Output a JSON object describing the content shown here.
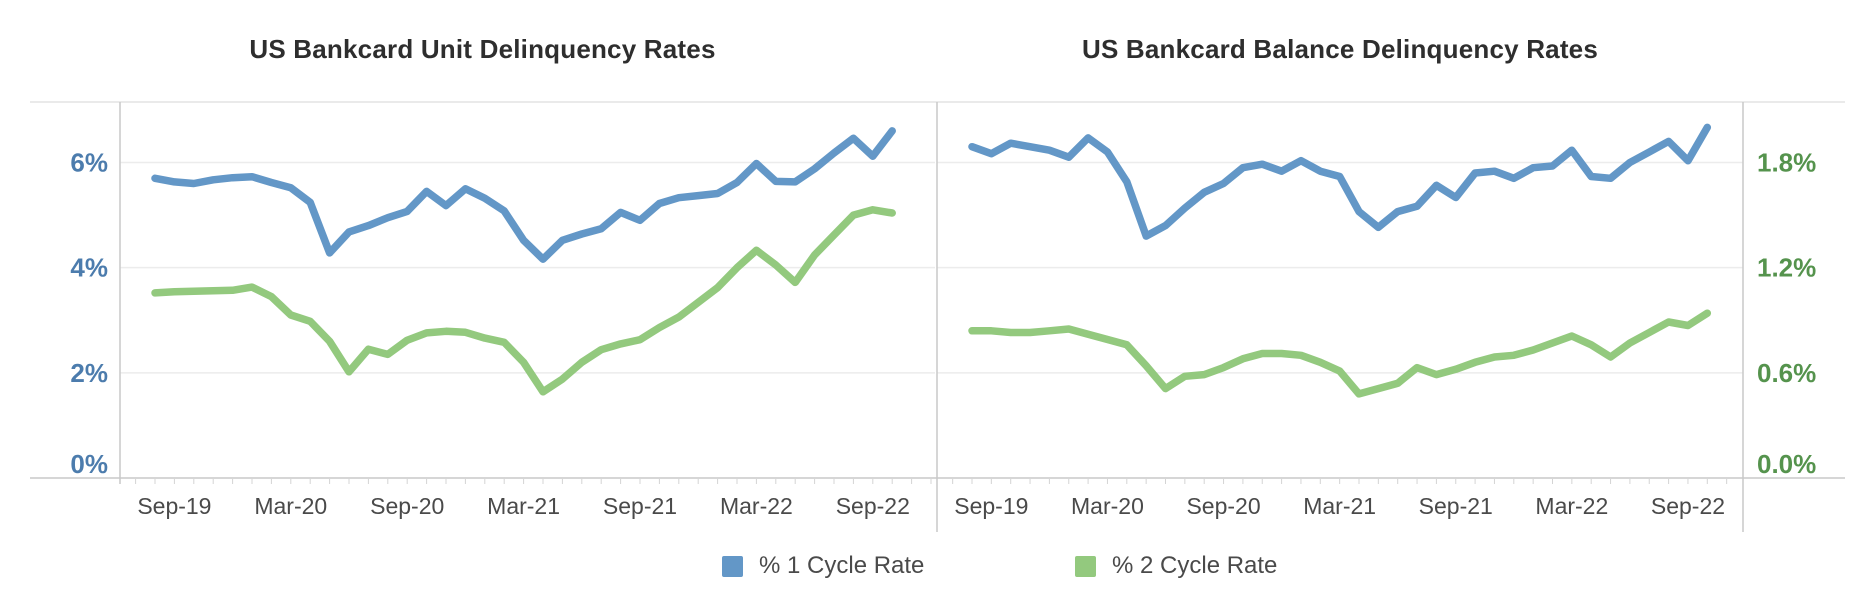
{
  "legend": {
    "items": [
      {
        "label": "% 1 Cycle Rate",
        "color": "#6397c7"
      },
      {
        "label": "% 2 Cycle Rate",
        "color": "#93c97e"
      }
    ],
    "position": "bottom"
  },
  "chart_data": [
    {
      "type": "line",
      "title": "US Bankcard Unit Delinquency Rates",
      "xlabel": "",
      "ylabel": "",
      "y_axis_side": "left",
      "y_label_color": "#4c7cad",
      "x_label_color": "#4a4a4a",
      "ylim": [
        0,
        7.15
      ],
      "y_tick_values": [
        0,
        2,
        4,
        6
      ],
      "y_tick_labels": [
        "0%",
        "2%",
        "4%",
        "6%"
      ],
      "x_tick_labels": [
        "Sep-19",
        "Mar-20",
        "Sep-20",
        "Mar-21",
        "Sep-21",
        "Mar-22",
        "Sep-22"
      ],
      "x_tick_months": [
        1,
        7,
        13,
        19,
        25,
        31,
        37
      ],
      "grid": "horizontal",
      "x": [
        "Aug-19",
        "Sep-19",
        "Oct-19",
        "Nov-19",
        "Dec-19",
        "Jan-20",
        "Feb-20",
        "Mar-20",
        "Apr-20",
        "May-20",
        "Jun-20",
        "Jul-20",
        "Aug-20",
        "Sep-20",
        "Oct-20",
        "Nov-20",
        "Dec-20",
        "Jan-21",
        "Feb-21",
        "Mar-21",
        "Apr-21",
        "May-21",
        "Jun-21",
        "Jul-21",
        "Aug-21",
        "Sep-21",
        "Oct-21",
        "Nov-21",
        "Dec-21",
        "Jan-22",
        "Feb-22",
        "Mar-22",
        "Apr-22",
        "May-22",
        "Jun-22",
        "Jul-22",
        "Aug-22",
        "Sep-22",
        "Oct-22"
      ],
      "series": [
        {
          "name": "% 1 Cycle Rate",
          "color": "#6397c7",
          "values": [
            5.7,
            5.63,
            5.6,
            5.67,
            5.71,
            5.73,
            5.62,
            5.52,
            5.24,
            4.28,
            4.68,
            4.8,
            4.95,
            5.07,
            5.45,
            5.18,
            5.5,
            5.32,
            5.08,
            4.52,
            4.16,
            4.52,
            4.64,
            4.74,
            5.05,
            4.9,
            5.22,
            5.33,
            5.37,
            5.41,
            5.62,
            5.98,
            5.64,
            5.63,
            5.88,
            6.18,
            6.46,
            6.12,
            6.6
          ]
        },
        {
          "name": "% 2 Cycle Rate",
          "color": "#93c97e",
          "values": [
            3.52,
            3.54,
            3.55,
            3.56,
            3.57,
            3.63,
            3.45,
            3.1,
            2.98,
            2.6,
            2.02,
            2.45,
            2.35,
            2.62,
            2.76,
            2.79,
            2.77,
            2.66,
            2.58,
            2.2,
            1.64,
            1.88,
            2.2,
            2.44,
            2.55,
            2.63,
            2.86,
            3.06,
            3.34,
            3.62,
            4.0,
            4.33,
            4.05,
            3.72,
            4.24,
            4.62,
            5.0,
            5.1,
            5.04
          ]
        }
      ]
    },
    {
      "type": "line",
      "title": "US Bankcard Balance Delinquency Rates",
      "xlabel": "",
      "ylabel": "",
      "y_axis_side": "right",
      "y_label_color": "#55934d",
      "x_label_color": "#4a4a4a",
      "ylim": [
        0,
        2.145
      ],
      "y_tick_values": [
        0,
        0.6,
        1.2,
        1.8
      ],
      "y_tick_labels": [
        "0.0%",
        "0.6%",
        "1.2%",
        "1.8%"
      ],
      "x_tick_labels": [
        "Sep-19",
        "Mar-20",
        "Sep-20",
        "Mar-21",
        "Sep-21",
        "Mar-22",
        "Sep-22"
      ],
      "x_tick_months": [
        1,
        7,
        13,
        19,
        25,
        31,
        37
      ],
      "grid": "horizontal",
      "x": [
        "Aug-19",
        "Sep-19",
        "Oct-19",
        "Nov-19",
        "Dec-19",
        "Jan-20",
        "Feb-20",
        "Mar-20",
        "Apr-20",
        "May-20",
        "Jun-20",
        "Jul-20",
        "Aug-20",
        "Sep-20",
        "Oct-20",
        "Nov-20",
        "Dec-20",
        "Jan-21",
        "Feb-21",
        "Mar-21",
        "Apr-21",
        "May-21",
        "Jun-21",
        "Jul-21",
        "Aug-21",
        "Sep-21",
        "Oct-21",
        "Nov-21",
        "Dec-21",
        "Jan-22",
        "Feb-22",
        "Mar-22",
        "Apr-22",
        "May-22",
        "Jun-22",
        "Jul-22",
        "Aug-22",
        "Sep-22",
        "Oct-22"
      ],
      "series": [
        {
          "name": "% 1 Cycle Rate",
          "color": "#6397c7",
          "values": [
            1.89,
            1.85,
            1.91,
            1.89,
            1.87,
            1.83,
            1.94,
            1.86,
            1.69,
            1.38,
            1.44,
            1.54,
            1.63,
            1.68,
            1.77,
            1.79,
            1.75,
            1.81,
            1.75,
            1.72,
            1.52,
            1.43,
            1.52,
            1.55,
            1.67,
            1.6,
            1.74,
            1.75,
            1.71,
            1.77,
            1.78,
            1.87,
            1.72,
            1.71,
            1.8,
            1.86,
            1.92,
            1.81,
            2.0
          ]
        },
        {
          "name": "% 2 Cycle Rate",
          "color": "#93c97e",
          "values": [
            0.84,
            0.84,
            0.83,
            0.83,
            0.84,
            0.85,
            0.82,
            0.79,
            0.76,
            0.64,
            0.51,
            0.58,
            0.59,
            0.63,
            0.68,
            0.71,
            0.71,
            0.7,
            0.66,
            0.61,
            0.48,
            0.51,
            0.54,
            0.63,
            0.59,
            0.62,
            0.66,
            0.69,
            0.7,
            0.73,
            0.77,
            0.81,
            0.76,
            0.69,
            0.77,
            0.83,
            0.89,
            0.87,
            0.94
          ]
        }
      ]
    }
  ]
}
